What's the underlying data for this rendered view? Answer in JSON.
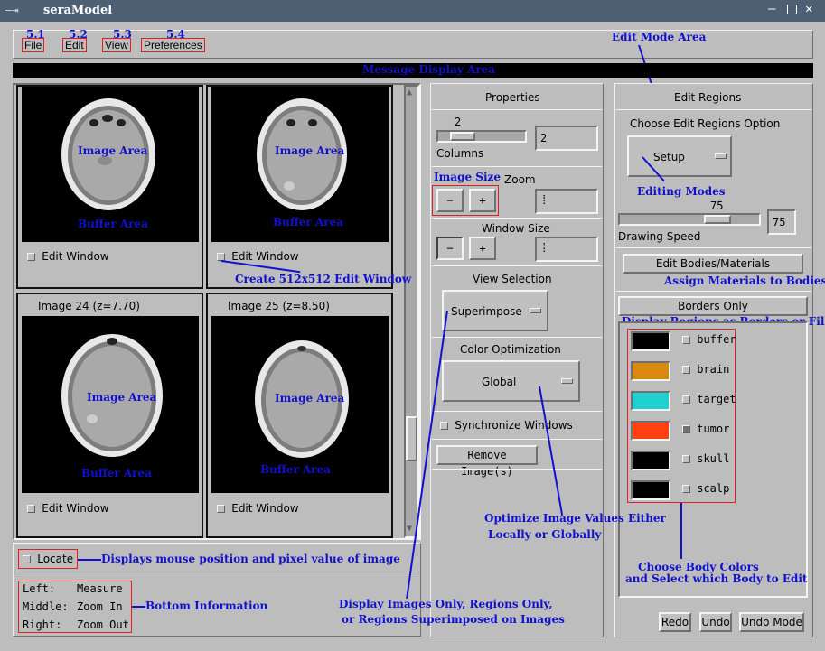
{
  "window": {
    "title": "seraModel"
  },
  "menu": {
    "items": [
      {
        "label": "File",
        "num": "5.1"
      },
      {
        "label": "Edit",
        "num": "5.2"
      },
      {
        "label": "View",
        "num": "5.3"
      },
      {
        "label": "Preferences",
        "num": "5.4"
      }
    ]
  },
  "message_bar": {
    "text": "Message Display Area"
  },
  "images": [
    {
      "header": "",
      "edit_label": "Edit Window",
      "ann_image": "Image Area",
      "ann_buffer": "Buffer Area"
    },
    {
      "header": "",
      "edit_label": "Edit Window",
      "ann_image": "Image Area",
      "ann_buffer": "Buffer Area"
    },
    {
      "header": "Image 24 (z=7.70)",
      "edit_label": "Edit Window",
      "ann_image": "Image Area",
      "ann_buffer": "Buffer Area"
    },
    {
      "header": "Image 25 (z=8.50)",
      "edit_label": "Edit Window",
      "ann_image": "Image Area",
      "ann_buffer": "Buffer Area"
    }
  ],
  "properties": {
    "title": "Properties",
    "columns_value": "2",
    "columns_label": "Columns",
    "columns_field": "2",
    "image_size_label": "Image Size",
    "zoom_label": "Zoom",
    "minus": "−",
    "plus": "+",
    "window_size_label": "Window Size",
    "view_selection_label": "View Selection",
    "view_option": "Superimpose",
    "color_opt_label": "Color Optimization",
    "color_option": "Global",
    "sync_label": "Synchronize Windows",
    "remove_label": "Remove Image(s)"
  },
  "edit": {
    "title": "Edit Regions",
    "choose_label": "Choose Edit Regions Option",
    "setup_option": "Setup",
    "speed_value": "75",
    "speed_field": "75",
    "speed_label": "Drawing Speed",
    "bodies_button": "Edit Bodies/Materials",
    "borders_button": "Borders Only",
    "bodies": [
      {
        "name": "buffer",
        "color": "#000000",
        "checked": false
      },
      {
        "name": "brain",
        "color": "#d88a10",
        "checked": false
      },
      {
        "name": "target",
        "color": "#20d0d0",
        "checked": false
      },
      {
        "name": "tumor",
        "color": "#ff4010",
        "checked": true
      },
      {
        "name": "skull",
        "color": "#000000",
        "checked": false
      },
      {
        "name": "scalp",
        "color": "#000000",
        "checked": false
      }
    ],
    "redo": "Redo",
    "undo": "Undo",
    "undo_mode": "Undo Mode"
  },
  "bottom": {
    "locate_label": "Locate",
    "left_key": "Left:",
    "left_val": "Measure",
    "middle_key": "Middle:",
    "middle_val": "Zoom In",
    "right_key": "Right:",
    "right_val": "Zoom Out"
  },
  "annotations": {
    "edit_mode_area": "Edit Mode Area",
    "create_window": "Create 512x512 Edit Window",
    "image_size": "Image Size",
    "editing_modes": "Editing Modes",
    "assign_materials": "Assign Materials to Bodies",
    "display_regions": "Display Regions as Borders or Filled",
    "optimize_1": "Optimize Image Values Either",
    "optimize_2": "Locally or Globally",
    "choose_colors_1": "Choose Body Colors",
    "choose_colors_2": "and Select which Body to Edit",
    "locate_desc": "Displays mouse position and pixel value of image",
    "bottom_info": "Bottom Information",
    "display_images_1": "Display Images Only, Regions Only,",
    "display_images_2": "or Regions Superimposed on Images"
  }
}
